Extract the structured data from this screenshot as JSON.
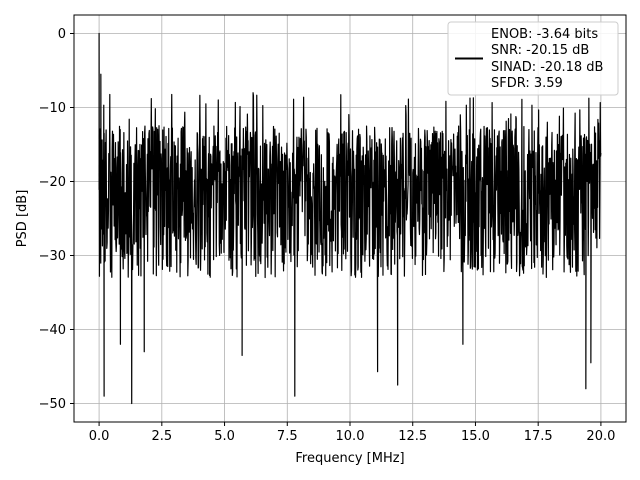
{
  "chart_data": {
    "type": "line",
    "title": "",
    "xlabel": "Frequency [MHz]",
    "ylabel": "PSD [dB]",
    "xlim": [
      -1.0,
      21.0
    ],
    "ylim": [
      -52.5,
      2.5
    ],
    "xticks": [
      0.0,
      2.5,
      5.0,
      7.5,
      10.0,
      12.5,
      15.0,
      17.5,
      20.0
    ],
    "xtick_labels": [
      "0.0",
      "2.5",
      "5.0",
      "7.5",
      "10.0",
      "12.5",
      "15.0",
      "17.5",
      "20.0"
    ],
    "yticks": [
      0,
      -10,
      -20,
      -30,
      -40,
      -50
    ],
    "ytick_labels": [
      "0",
      "−10",
      "−20",
      "−30",
      "−40",
      "−50"
    ],
    "grid": true,
    "legend_position": "top-right",
    "legend_lines": [
      "ENOB: -3.64 bits",
      "SNR: -20.15 dB",
      "SINAD: -20.18 dB",
      "SFDR: 3.59"
    ],
    "series": [
      {
        "color": "#000000",
        "noise_envelope": {
          "x_start": 0.0,
          "x_end": 20.0,
          "upper_dB": -12.5,
          "lower_dB": -33.0,
          "median_dB": -20.0
        },
        "points": [
          {
            "x": 0.0,
            "y": 0.0
          },
          {
            "x": 0.03,
            "y": -13.0
          },
          {
            "x": 0.07,
            "y": -5.5
          },
          {
            "x": 0.12,
            "y": -17.5
          },
          {
            "x": 0.2,
            "y": -49.0
          },
          {
            "x": 0.85,
            "y": -42.0
          },
          {
            "x": 1.3,
            "y": -50.0
          },
          {
            "x": 1.8,
            "y": -43.0
          },
          {
            "x": 5.7,
            "y": -43.5
          },
          {
            "x": 7.8,
            "y": -49.0
          },
          {
            "x": 11.1,
            "y": -45.7
          },
          {
            "x": 11.9,
            "y": -47.5
          },
          {
            "x": 14.5,
            "y": -42.0
          },
          {
            "x": 19.4,
            "y": -48.0
          },
          {
            "x": 19.6,
            "y": -44.5
          }
        ]
      }
    ]
  }
}
